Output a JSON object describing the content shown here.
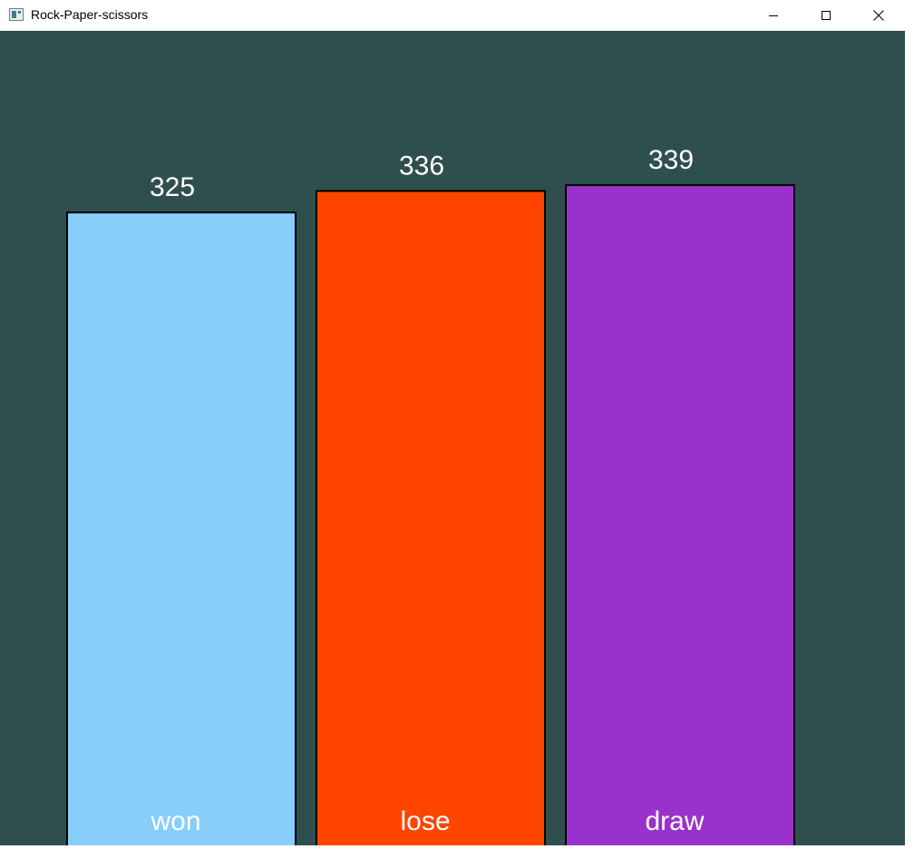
{
  "window": {
    "title": "Rock-Paper-scissors",
    "app_icon": "app-window-icon",
    "buttons": {
      "minimize_icon": "minimize-icon",
      "maximize_icon": "maximize-icon",
      "close_icon": "close-icon"
    }
  },
  "colors": {
    "background": "#2f4f4f",
    "won": "#87cefa",
    "lose": "#ff4500",
    "draw": "#9932cc",
    "text": "#ffffff",
    "bar_border": "#000000"
  },
  "chart_data": {
    "type": "bar",
    "categories": [
      "won",
      "lose",
      "draw"
    ],
    "values": [
      325,
      336,
      339
    ],
    "value_labels": [
      "325",
      "336",
      "339"
    ],
    "bar_colors": [
      "#87cefa",
      "#ff4500",
      "#9932cc"
    ],
    "ylim": [
      0,
      418
    ],
    "grid": false,
    "legend": "none"
  }
}
